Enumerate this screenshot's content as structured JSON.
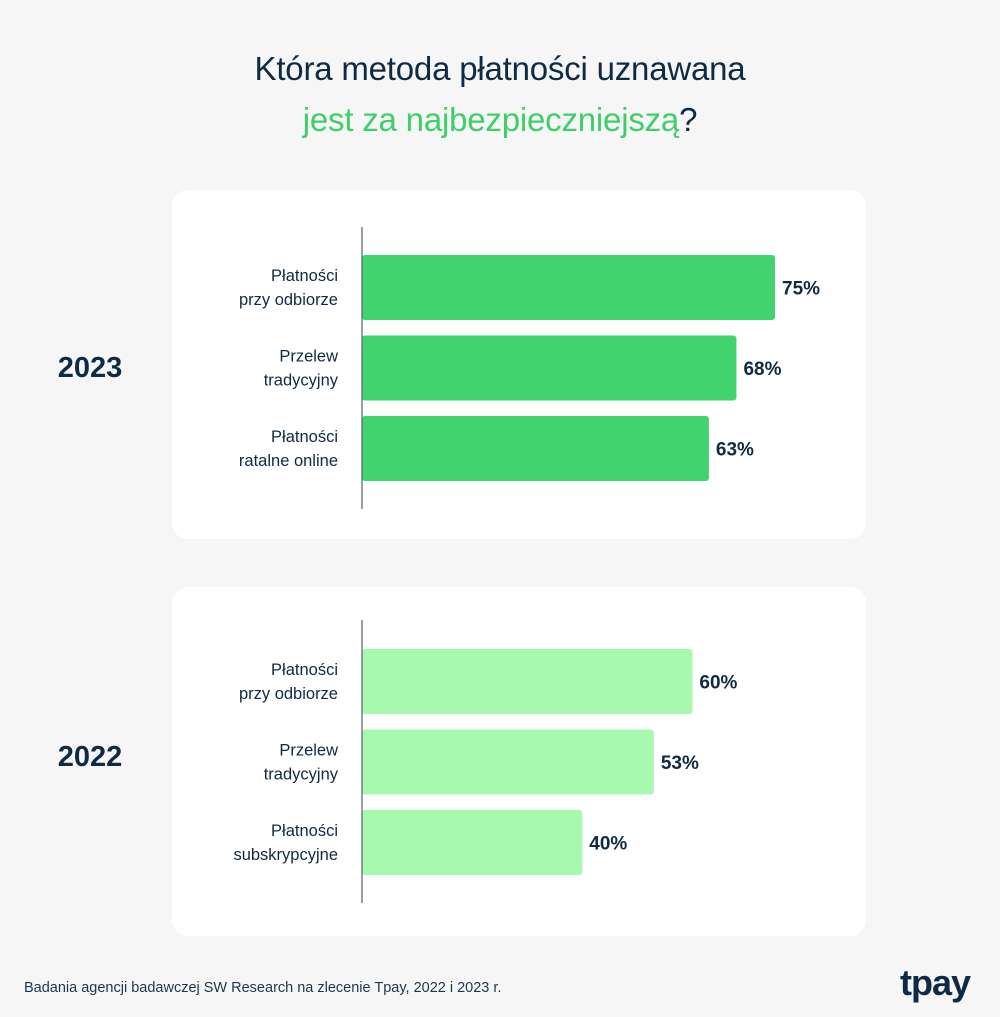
{
  "title": {
    "line1": "Która metoda płatności uznawana",
    "line2_accent": "jest za najbezpieczniejszą",
    "line2_tail": "?"
  },
  "colors": {
    "bar_2023": "#41d46e",
    "bar_2022": "#a8f9b0",
    "text": "#0f2a44",
    "accent": "#3fcf68"
  },
  "chart_data": [
    {
      "type": "bar",
      "orientation": "horizontal",
      "year": "2023",
      "categories": [
        [
          "Płatności",
          "przy odbiorze"
        ],
        [
          "Przelew",
          "tradycyjny"
        ],
        [
          "Płatności",
          "ratalne online"
        ]
      ],
      "values": [
        75,
        68,
        63
      ],
      "value_labels": [
        "75%",
        "68%",
        "63%"
      ],
      "unit": "%",
      "xlim": [
        0,
        100
      ]
    },
    {
      "type": "bar",
      "orientation": "horizontal",
      "year": "2022",
      "categories": [
        [
          "Płatności",
          "przy odbiorze"
        ],
        [
          "Przelew",
          "tradycyjny"
        ],
        [
          "Płatności",
          "subskrypcyjne"
        ]
      ],
      "values": [
        60,
        53,
        40
      ],
      "value_labels": [
        "60%",
        "53%",
        "40%"
      ],
      "unit": "%",
      "xlim": [
        0,
        100
      ]
    }
  ],
  "footer": "Badania agencji badawczej SW Research na zlecenie Tpay, 2022 i 2023 r.",
  "logo": "tpay"
}
